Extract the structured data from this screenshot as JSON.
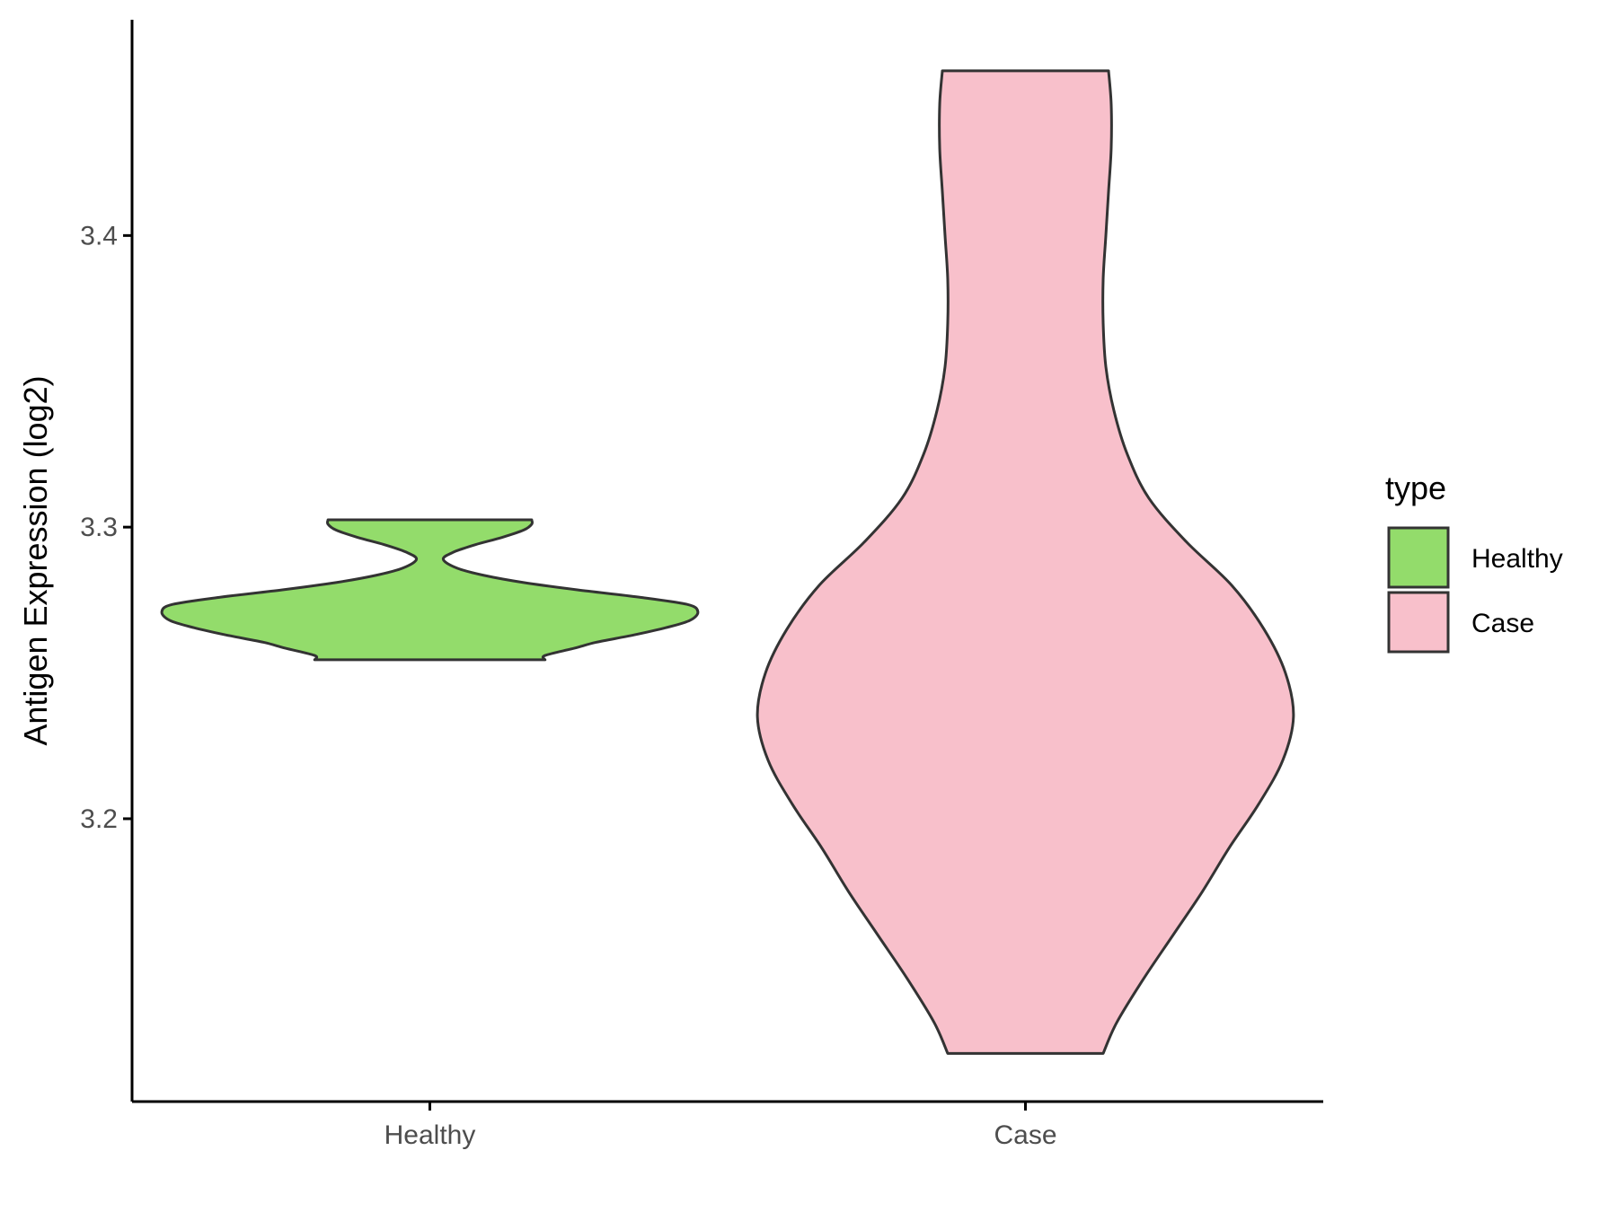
{
  "chart_data": {
    "type": "violin",
    "title": "",
    "xlabel": "",
    "ylabel": "Antigen Expression (log2)",
    "ylim": [
      3.103,
      3.474
    ],
    "yticks": [
      3.2,
      3.3,
      3.4
    ],
    "ytick_labels": [
      "3.2",
      "3.3",
      "3.4"
    ],
    "categories": [
      "Healthy",
      "Case"
    ],
    "grid": false,
    "legend": {
      "title": "type",
      "position": "right",
      "entries": [
        "Healthy",
        "Case"
      ]
    },
    "series": [
      {
        "name": "Healthy",
        "color": "#93DC6B",
        "min": 3.2545,
        "max": 3.3025,
        "density_profile": [
          [
            3.2545,
            0.43
          ],
          [
            3.256,
            0.43
          ],
          [
            3.2585,
            0.54
          ],
          [
            3.2605,
            0.62
          ],
          [
            3.263,
            0.76
          ],
          [
            3.2655,
            0.88
          ],
          [
            3.268,
            0.97
          ],
          [
            3.271,
            1.0
          ],
          [
            3.2735,
            0.96
          ],
          [
            3.276,
            0.78
          ],
          [
            3.2785,
            0.55
          ],
          [
            3.281,
            0.35
          ],
          [
            3.2835,
            0.2
          ],
          [
            3.286,
            0.1
          ],
          [
            3.289,
            0.05
          ],
          [
            3.2915,
            0.09
          ],
          [
            3.294,
            0.17
          ],
          [
            3.2965,
            0.27
          ],
          [
            3.299,
            0.35
          ],
          [
            3.301,
            0.38
          ],
          [
            3.3025,
            0.38
          ]
        ]
      },
      {
        "name": "Case",
        "color": "#F8C0CB",
        "min": 3.1195,
        "max": 3.4565,
        "density_profile": [
          [
            3.1195,
            0.29
          ],
          [
            3.13,
            0.34
          ],
          [
            3.145,
            0.44
          ],
          [
            3.16,
            0.55
          ],
          [
            3.175,
            0.66
          ],
          [
            3.19,
            0.76
          ],
          [
            3.205,
            0.87
          ],
          [
            3.22,
            0.96
          ],
          [
            3.235,
            1.0
          ],
          [
            3.25,
            0.97
          ],
          [
            3.265,
            0.89
          ],
          [
            3.28,
            0.77
          ],
          [
            3.295,
            0.6
          ],
          [
            3.31,
            0.46
          ],
          [
            3.325,
            0.38
          ],
          [
            3.34,
            0.33
          ],
          [
            3.355,
            0.3
          ],
          [
            3.37,
            0.29
          ],
          [
            3.385,
            0.29
          ],
          [
            3.4,
            0.3
          ],
          [
            3.415,
            0.31
          ],
          [
            3.43,
            0.32
          ],
          [
            3.445,
            0.32
          ],
          [
            3.4565,
            0.31
          ]
        ]
      }
    ]
  }
}
